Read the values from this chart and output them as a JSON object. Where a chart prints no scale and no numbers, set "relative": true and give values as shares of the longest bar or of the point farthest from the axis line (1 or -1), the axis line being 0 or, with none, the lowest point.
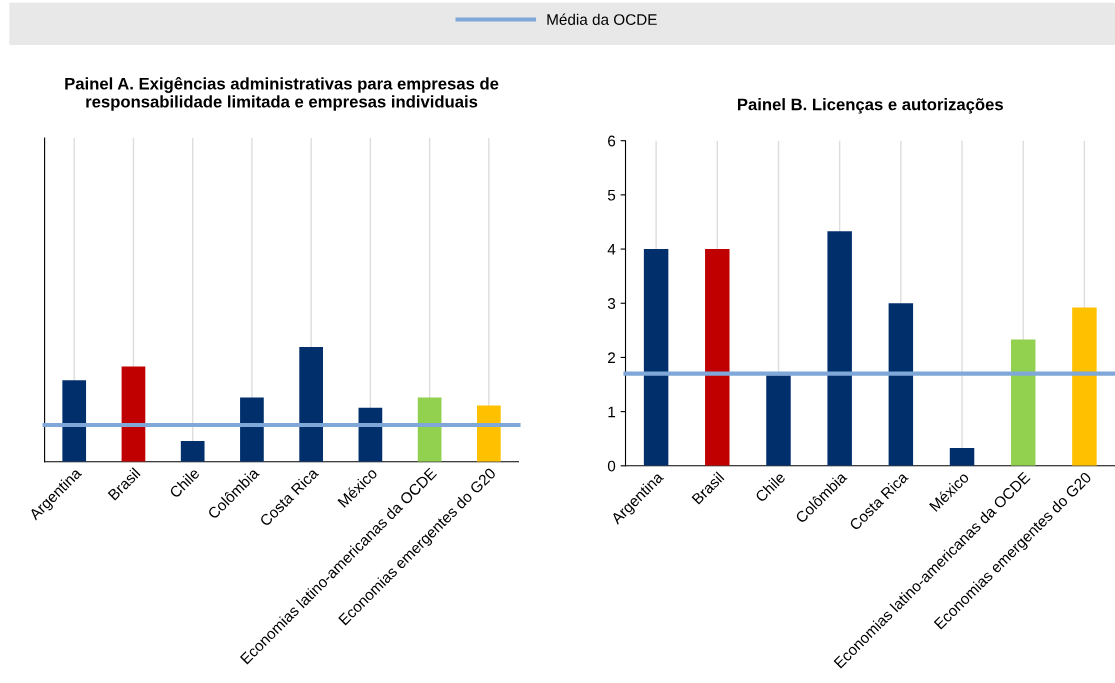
{
  "chart_data": [
    {
      "type": "bar",
      "title": "Painel A. Exigências administrativas para empresas de\nresponsabilidade limitada e empresas individuais",
      "relative": true,
      "categories": [
        "Argentina",
        "Brasil",
        "Chile",
        "Colômbia",
        "Costa Rica",
        "México",
        "Economias latino-americanas da OCDE",
        "Economias emergentes do G20"
      ],
      "values": [
        0.71,
        0.83,
        0.18,
        0.56,
        1,
        0.47,
        0.56,
        0.49
      ],
      "colors": [
        "#002f6c",
        "#c00000",
        "#002f6c",
        "#002f6c",
        "#002f6c",
        "#002f6c",
        "#92d050",
        "#ffc000"
      ],
      "ref_lines": [
        {
          "axis": "y",
          "value": 0.32,
          "label": "Média da OCDE",
          "color": "#7fa8d9"
        }
      ],
      "grid": "x",
      "legend": "top"
    },
    {
      "type": "bar",
      "title": "Painel B. Licenças e autorizações",
      "categories": [
        "Argentina",
        "Brasil",
        "Chile",
        "Colômbia",
        "Costa Rica",
        "México",
        "Economias latino-americanas da OCDE",
        "Economias emergentes do G20"
      ],
      "values": [
        4.0,
        4.0,
        1.67,
        4.33,
        3.0,
        0.33,
        2.33,
        2.92
      ],
      "colors": [
        "#002f6c",
        "#c00000",
        "#002f6c",
        "#002f6c",
        "#002f6c",
        "#002f6c",
        "#92d050",
        "#ffc000"
      ],
      "ref_lines": [
        {
          "axis": "y",
          "value": 1.7,
          "color": "#7fa8d9"
        }
      ],
      "ylim": [
        0,
        6
      ],
      "yticks": [
        0,
        1,
        2,
        3,
        4,
        5,
        6
      ],
      "grid": "x"
    }
  ]
}
